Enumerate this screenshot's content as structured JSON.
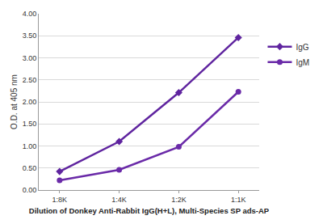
{
  "chart_data": {
    "type": "line",
    "x_label": "Dilution of Donkey Anti-Rabbit IgG(H+L), Multi-Species SP ads-AP",
    "y_label": "O.D. at 405 nm",
    "categories": [
      "1:8K",
      "1:4K",
      "1:2K",
      "1:1K"
    ],
    "series": [
      {
        "name": "IgG",
        "color": "#5f249f",
        "marker": "diamond",
        "line_style": "solid",
        "values": [
          0.42,
          1.1,
          2.21,
          3.46
        ]
      },
      {
        "name": "IgM",
        "color": "#6a2aa8",
        "marker": "circle",
        "line_style": "solid",
        "values": [
          0.22,
          0.46,
          0.98,
          2.23
        ]
      }
    ],
    "ylim": [
      0,
      4
    ],
    "yticks": [
      {
        "value": 0,
        "label": "0.00"
      },
      {
        "value": 0.5,
        "label": "0.50"
      },
      {
        "value": 1,
        "label": "1.00"
      },
      {
        "value": 1.5,
        "label": "1.50"
      },
      {
        "value": 2,
        "label": "2.00"
      },
      {
        "value": 2.5,
        "label": "2.50"
      },
      {
        "value": 3,
        "label": "3.00"
      },
      {
        "value": 3.5,
        "label": "3.50"
      },
      {
        "value": 4,
        "label": "4.00"
      }
    ],
    "grid": true,
    "legend": "right"
  }
}
